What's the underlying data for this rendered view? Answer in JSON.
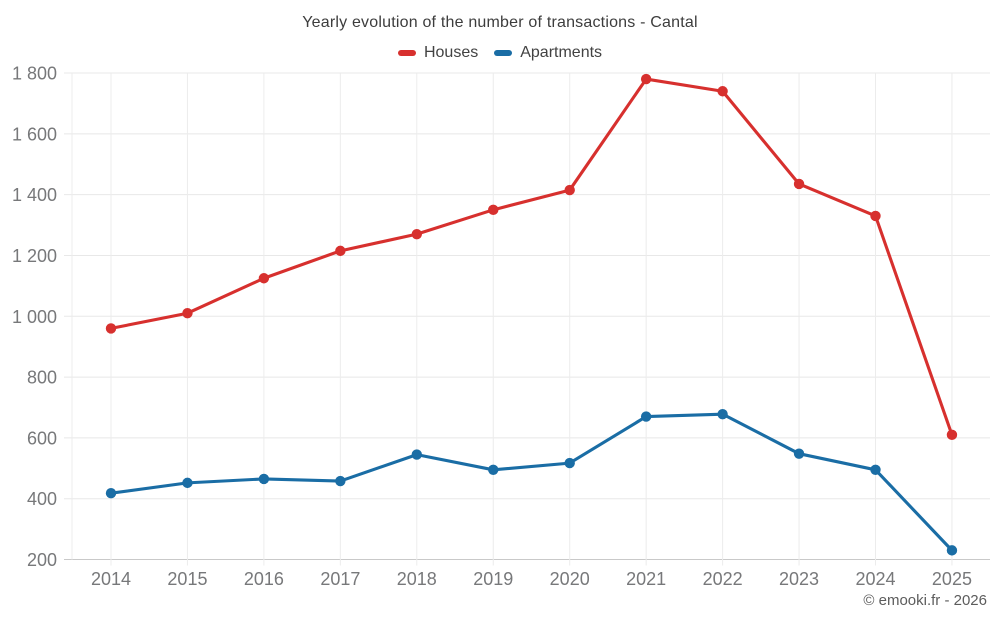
{
  "title": "Yearly evolution of the number of transactions - Cantal",
  "footer": {
    "copyright": "© emooki.fr - 2026"
  },
  "chart_data": {
    "type": "line",
    "title": "Yearly evolution of the number of transactions - Cantal",
    "x": [
      "2014",
      "2015",
      "2016",
      "2017",
      "2018",
      "2019",
      "2020",
      "2021",
      "2022",
      "2023",
      "2024",
      "2025"
    ],
    "series": [
      {
        "name": "Houses",
        "color": "#d7302e",
        "values": [
          960,
          1010,
          1125,
          1215,
          1270,
          1350,
          1415,
          1780,
          1740,
          1435,
          1330,
          610
        ]
      },
      {
        "name": "Apartments",
        "color": "#1a6da5",
        "values": [
          418,
          452,
          465,
          458,
          545,
          495,
          517,
          670,
          678,
          548,
          495,
          230
        ]
      }
    ],
    "xlabel": "",
    "ylabel": "",
    "ylim": [
      200,
      1800
    ],
    "yticks": [
      200,
      400,
      600,
      800,
      1000,
      1200,
      1400,
      1600,
      1800
    ],
    "ytick_labels": [
      "200",
      "400",
      "600",
      "800",
      "1 000",
      "1 200",
      "1 400",
      "1 600",
      "1 800"
    ],
    "grid": true,
    "legend_position": "top",
    "marker": "circle"
  }
}
